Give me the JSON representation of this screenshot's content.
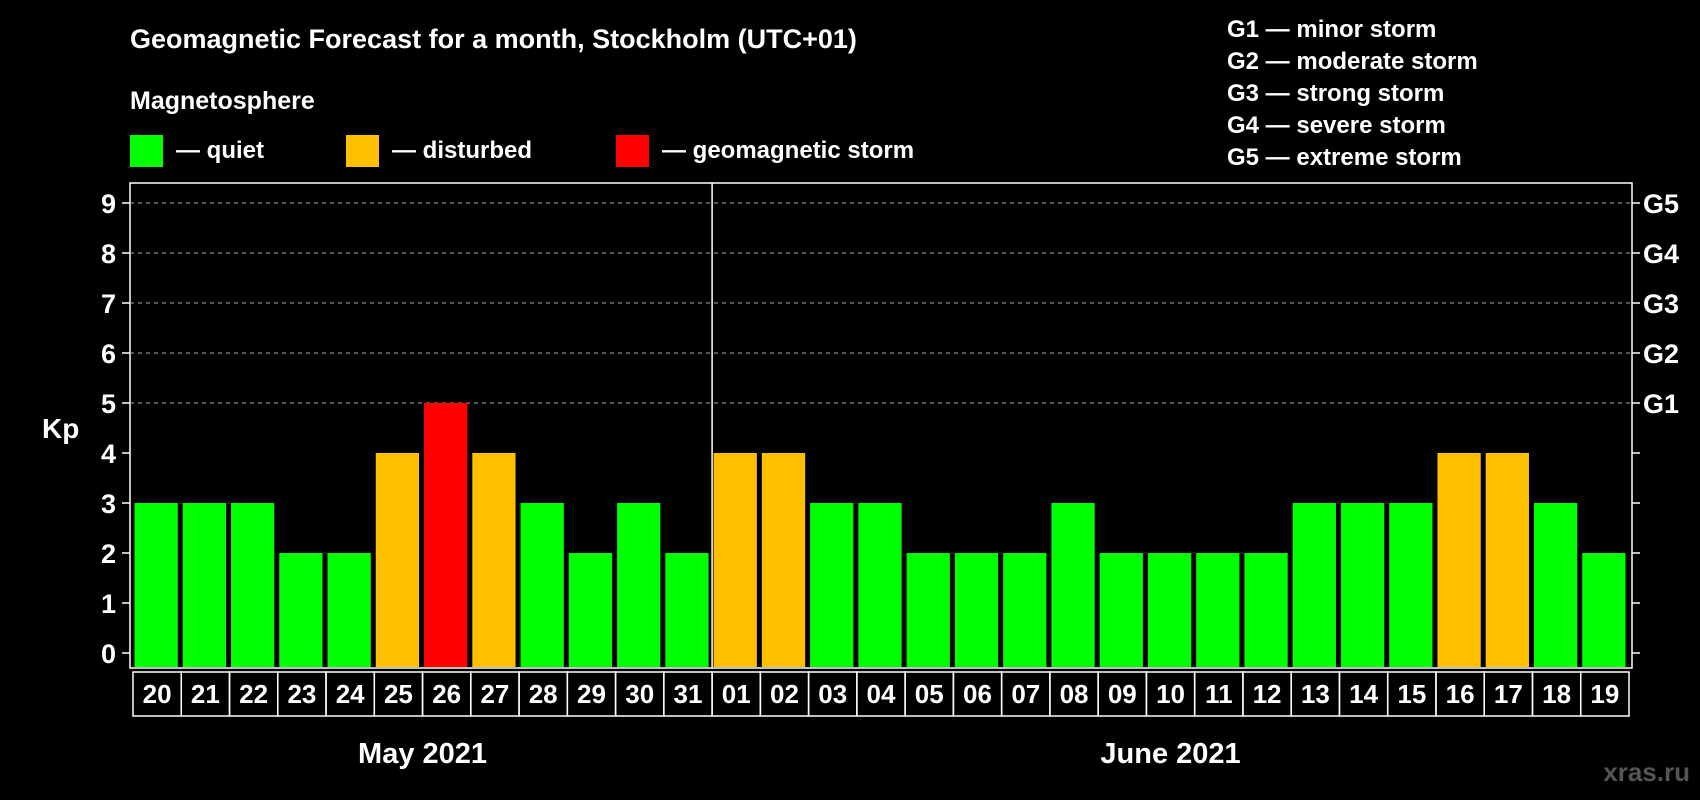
{
  "title": "Geomagnetic Forecast for a month, Stockholm (UTC+01)",
  "legend": {
    "heading": "Magnetosphere",
    "items": [
      {
        "label": "— quiet",
        "color": "#00ff00"
      },
      {
        "label": "— disturbed",
        "color": "#ffc000"
      },
      {
        "label": "— geomagnetic storm",
        "color": "#ff0000"
      }
    ]
  },
  "storm_scale": [
    "G1 — minor storm",
    "G2 — moderate storm",
    "G3 — strong storm",
    "G4 — severe storm",
    "G5 — extreme storm"
  ],
  "watermark": "xras.ru",
  "colors": {
    "quiet": "#00ff00",
    "disturbed": "#ffc000",
    "storm": "#ff0000"
  },
  "chart_data": {
    "type": "bar",
    "title": "Geomagnetic Forecast for a month, Stockholm (UTC+01)",
    "ylabel": "Kp",
    "ylim": [
      0,
      9
    ],
    "yticks": [
      0,
      1,
      2,
      3,
      4,
      5,
      6,
      7,
      8,
      9
    ],
    "right_axis_labels": [
      {
        "kp": 5,
        "label": "G1"
      },
      {
        "kp": 6,
        "label": "G2"
      },
      {
        "kp": 7,
        "label": "G3"
      },
      {
        "kp": 8,
        "label": "G4"
      },
      {
        "kp": 9,
        "label": "G5"
      }
    ],
    "categories": [
      "20",
      "21",
      "22",
      "23",
      "24",
      "25",
      "26",
      "27",
      "28",
      "29",
      "30",
      "31",
      "01",
      "02",
      "03",
      "04",
      "05",
      "06",
      "07",
      "08",
      "09",
      "10",
      "11",
      "12",
      "13",
      "14",
      "15",
      "16",
      "17",
      "18",
      "19"
    ],
    "values": [
      3,
      3,
      3,
      2,
      2,
      4,
      5,
      4,
      3,
      2,
      3,
      2,
      4,
      4,
      3,
      3,
      2,
      2,
      2,
      3,
      2,
      2,
      2,
      2,
      3,
      3,
      3,
      4,
      4,
      3,
      2
    ],
    "months": [
      {
        "label": "May 2021",
        "start_index": 0,
        "end_index": 11
      },
      {
        "label": "June 2021",
        "start_index": 12,
        "end_index": 30
      }
    ],
    "month_divider_after_index": 11,
    "gridlines_from_kp": 5
  }
}
